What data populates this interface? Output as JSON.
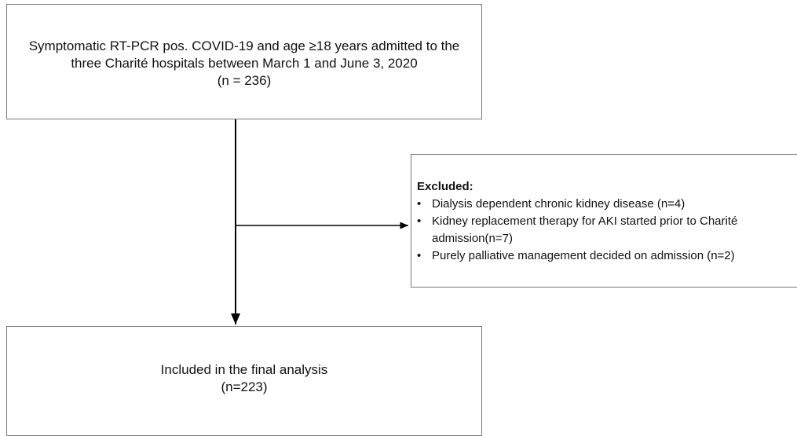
{
  "nodes": [
    {
      "lines": [
        "Symptomatic RT-PCR pos. COVID-19 and age ≥18 years admitted to the",
        "three Charité hospitals between March 1 and June 3, 2020",
        "(n = 236)"
      ]
    },
    {
      "heading": "Excluded:",
      "items": [
        [
          "Dialysis dependent chronic kidney disease (n=4)"
        ],
        [
          "Kidney replacement therapy for AKI started prior to Charité",
          "admission(n=7)"
        ],
        [
          "Purely palliative management decided on admission (n=2)"
        ]
      ]
    },
    {
      "lines": [
        "Included in the final analysis",
        "(n=223)"
      ]
    }
  ]
}
